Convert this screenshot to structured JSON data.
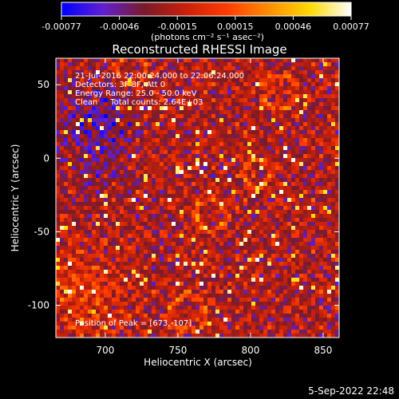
{
  "chart_data": {
    "type": "heatmap",
    "title": "Reconstructed RHESSI Image",
    "xlabel": "Heliocentric X (arcsec)",
    "ylabel": "Heliocentric Y (arcsec)",
    "xlim": [
      666,
      861
    ],
    "ylim": [
      -122,
      68
    ],
    "xticks": [
      700,
      750,
      800,
      850
    ],
    "yticks": [
      -100,
      -50,
      0,
      50
    ],
    "colorbar": {
      "range": [
        -0.00077,
        0.00077
      ],
      "ticks": [
        "-0.00077",
        "-0.00046",
        "-0.00015",
        "0.00015",
        "0.00046",
        "0.00077"
      ],
      "units": "(photons cm⁻² s⁻¹ asec⁻²)",
      "colormap": [
        "#0000ff",
        "#6020d0",
        "#7a1a2a",
        "#c8200a",
        "#ff3c00",
        "#ff8c00",
        "#ffd800",
        "#ffffff"
      ]
    },
    "annotations": [
      "21-Jul-2016 22:00:24.000 to 22:06:24.000",
      "Detectors: 3F 8F, Att 0",
      "Energy Range: 25.0 - 50.0 keV",
      "Clean     Total counts: 2.64E+03"
    ],
    "peak_label": "Position of Peak = [673,-107]",
    "peak_position": [
      673,
      -107
    ],
    "grid": false
  },
  "footer": {
    "timestamp": "5-Sep-2022 22:48"
  }
}
